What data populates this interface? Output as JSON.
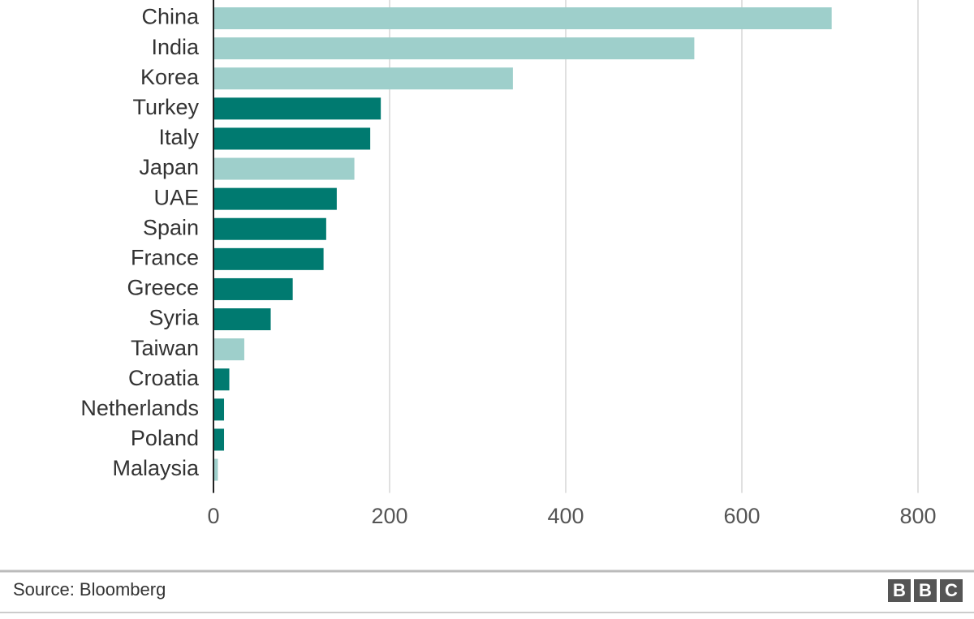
{
  "chart_data": {
    "type": "bar",
    "orientation": "horizontal",
    "categories": [
      "China",
      "India",
      "Korea",
      "Turkey",
      "Italy",
      "Japan",
      "UAE",
      "Spain",
      "France",
      "Greece",
      "Syria",
      "Taiwan",
      "Croatia",
      "Netherlands",
      "Poland",
      "Malaysia"
    ],
    "values": [
      702,
      546,
      340,
      190,
      178,
      160,
      140,
      128,
      125,
      90,
      65,
      35,
      18,
      12,
      12,
      5
    ],
    "colors": [
      "#9ecfcb",
      "#9ecfcb",
      "#9ecfcb",
      "#007a70",
      "#007a70",
      "#9ecfcb",
      "#007a70",
      "#007a70",
      "#007a70",
      "#007a70",
      "#007a70",
      "#9ecfcb",
      "#007a70",
      "#007a70",
      "#007a70",
      "#9ecfcb"
    ],
    "xlim": [
      0,
      800
    ],
    "xticks": [
      0,
      200,
      400,
      600,
      800
    ],
    "grid": true
  },
  "footer": {
    "source": "Source: Bloomberg",
    "logo": [
      "B",
      "B",
      "C"
    ]
  }
}
